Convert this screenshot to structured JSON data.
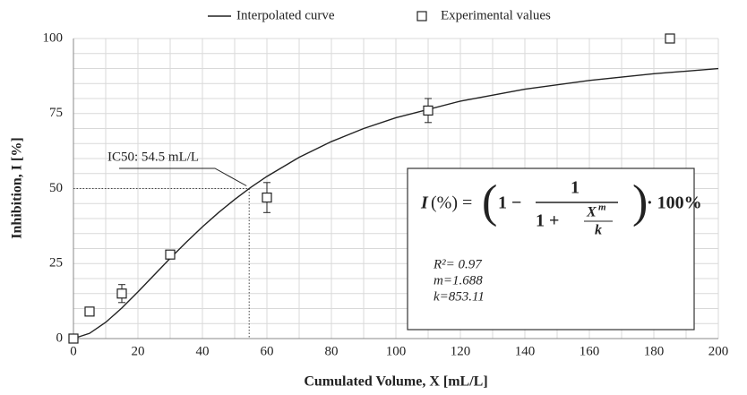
{
  "chart_data": {
    "type": "line",
    "xlabel": "Cumulated Volume, X [mL/L]",
    "ylabel": "Inhibition, I [%]",
    "xlim": [
      0,
      200
    ],
    "ylim": [
      0,
      100
    ],
    "xticks": [
      0,
      20,
      40,
      60,
      80,
      100,
      120,
      140,
      160,
      180,
      200
    ],
    "yticks": [
      0,
      25,
      50,
      75,
      100
    ],
    "grid": true,
    "legend": "top",
    "series": [
      {
        "name": "Interpolated curve",
        "type": "line",
        "color": "#222222",
        "x": [
          0,
          5,
          10,
          15,
          20,
          25,
          30,
          35,
          40,
          45,
          50,
          55,
          60,
          70,
          80,
          90,
          100,
          120,
          140,
          160,
          180,
          200
        ],
        "values": [
          0,
          1.74,
          5.41,
          10.18,
          15.55,
          21.16,
          26.75,
          32.14,
          37.24,
          42.0,
          46.37,
          50.38,
          54.04,
          60.41,
          65.66,
          70.0,
          73.59,
          79.13,
          83.1,
          86.03,
          88.26,
          89.98
        ]
      },
      {
        "name": "Experimental values",
        "type": "scatter",
        "color": "#222222",
        "x": [
          0,
          5,
          15,
          30,
          60,
          110,
          185
        ],
        "values": [
          0,
          9,
          15,
          28,
          47,
          76,
          100
        ],
        "errors": [
          0,
          1,
          3,
          1,
          5,
          4,
          0
        ]
      }
    ],
    "annotation": {
      "text": "IC50: 54.5 mL/L",
      "x": 54.5,
      "y": 50
    },
    "formula": {
      "lhs_var": "I",
      "lhs": "(%) =",
      "one": "1 −",
      "num": "1",
      "den": "1 +",
      "xvar": "X",
      "exp": "m",
      "kvar": "k",
      "tail": "· 100%"
    },
    "stats": [
      "R²= 0.97",
      "m=1.688",
      "k=853.11"
    ]
  }
}
